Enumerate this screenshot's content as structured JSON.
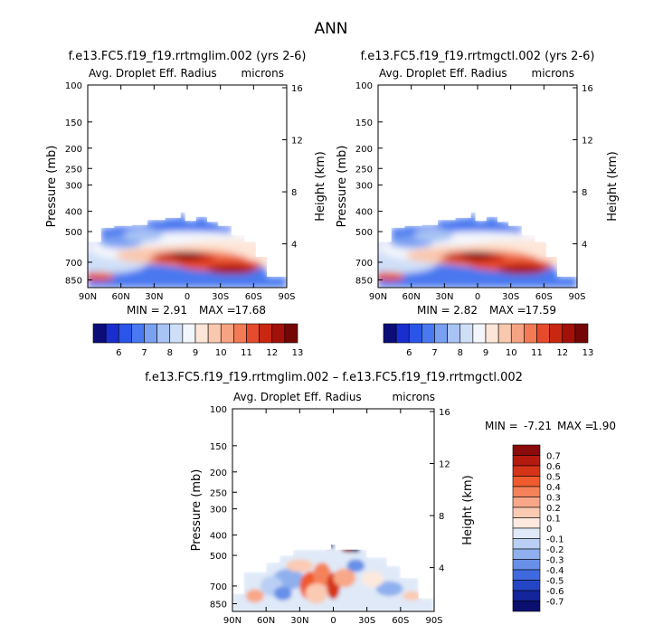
{
  "page_title": "ANN",
  "chart_data": [
    {
      "type": "heatmap",
      "title": "f.e13.FC5.f19_f19.rrtmglim.002 (yrs 2-6)",
      "subtitle_left": "Avg. Droplet Eff. Radius",
      "subtitle_right": "microns",
      "xlabel": "",
      "ylabel": "Pressure (mb)",
      "ylabel_right": "Height (km)",
      "x_ticks": [
        "90N",
        "60N",
        "30N",
        "0",
        "30S",
        "60S",
        "90S"
      ],
      "y_ticks": [
        "100",
        "150",
        "200",
        "250",
        "300",
        "400",
        "500",
        "700",
        "850"
      ],
      "y_ticks_right": [
        "16",
        "12",
        "8",
        "4"
      ],
      "min_label": "MIN =",
      "min_value": "2.91",
      "max_label": "MAX =",
      "max_value": "17.68",
      "colorbar_labels": [
        "6",
        "7",
        "8",
        "9",
        "10",
        "11",
        "12",
        "13"
      ],
      "colorbar_colors": [
        "#0d0d7a",
        "#1a2ecf",
        "#2a55e8",
        "#4a78f0",
        "#7aa0f2",
        "#a8c3f4",
        "#cfdff8",
        "#f3f6fc",
        "#fde6d8",
        "#fac8ae",
        "#f6a383",
        "#f27a55",
        "#e64b2c",
        "#c82712",
        "#a3100a",
        "#750606"
      ]
    },
    {
      "type": "heatmap",
      "title": "f.e13.FC5.f19_f19.rrtmgctl.002 (yrs 2-6)",
      "subtitle_left": "Avg. Droplet Eff. Radius",
      "subtitle_right": "microns",
      "xlabel": "",
      "ylabel": "Pressure (mb)",
      "ylabel_right": "Height (km)",
      "x_ticks": [
        "90N",
        "60N",
        "30N",
        "0",
        "30S",
        "60S",
        "90S"
      ],
      "y_ticks": [
        "100",
        "150",
        "200",
        "250",
        "300",
        "400",
        "500",
        "700",
        "850"
      ],
      "y_ticks_right": [
        "16",
        "12",
        "8",
        "4"
      ],
      "min_label": "MIN =",
      "min_value": "2.82",
      "max_label": "MAX =",
      "max_value": "17.59",
      "colorbar_labels": [
        "6",
        "7",
        "8",
        "9",
        "10",
        "11",
        "12",
        "13"
      ],
      "colorbar_colors": [
        "#0d0d7a",
        "#1a2ecf",
        "#2a55e8",
        "#4a78f0",
        "#7aa0f2",
        "#a8c3f4",
        "#cfdff8",
        "#f3f6fc",
        "#fde6d8",
        "#fac8ae",
        "#f6a383",
        "#f27a55",
        "#e64b2c",
        "#c82712",
        "#a3100a",
        "#750606"
      ]
    },
    {
      "type": "heatmap",
      "title": "f.e13.FC5.f19_f19.rrtmglim.002 – f.e13.FC5.f19_f19.rrtmgctl.002",
      "subtitle_left": "Avg. Droplet Eff. Radius",
      "subtitle_right": "microns",
      "xlabel": "",
      "ylabel": "Pressure (mb)",
      "ylabel_right": "Height (km)",
      "x_ticks": [
        "90N",
        "60N",
        "30N",
        "0",
        "30S",
        "60S",
        "90S"
      ],
      "y_ticks": [
        "100",
        "150",
        "200",
        "250",
        "300",
        "400",
        "500",
        "700",
        "850"
      ],
      "y_ticks_right": [
        "16",
        "12",
        "8",
        "4"
      ],
      "min_label": "MIN =",
      "min_value": "-7.21",
      "max_label": "MAX =",
      "max_value": "1.90",
      "colorbar_labels": [
        "0.7",
        "0.6",
        "0.5",
        "0.4",
        "0.3",
        "0.2",
        "0.1",
        "0",
        "-0.1",
        "-0.2",
        "-0.3",
        "-0.4",
        "-0.5",
        "-0.6",
        "-0.7"
      ],
      "colorbar_colors": [
        "#8b0a0a",
        "#b51a10",
        "#d63418",
        "#ef5a2e",
        "#f5825a",
        "#f8a888",
        "#fbcab2",
        "#fde9de",
        "#dfe9f8",
        "#b9cff4",
        "#8fb0ee",
        "#6890e8",
        "#3f69de",
        "#2446c6",
        "#13259a",
        "#0a0f6e"
      ]
    }
  ]
}
